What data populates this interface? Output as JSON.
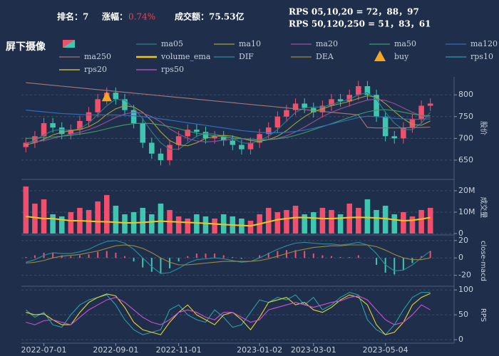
{
  "header": {
    "rank": "排名：7",
    "change_label": "涨幅：",
    "change_value": "0.74%",
    "turnover": "成交额：75.53亿",
    "rps_short": "RPS 05,10,20 = 72，88，97",
    "rps_long": "RPS 50,120,250 = 51，83，61"
  },
  "chart_data": {
    "type": "candlestick",
    "title": "屏下摄像",
    "categories": [
      null,
      null,
      "2022-07-01",
      null,
      null,
      null,
      null,
      null,
      null,
      null,
      "2022-09-01",
      null,
      null,
      null,
      null,
      null,
      null,
      "2022-11-01",
      null,
      null,
      null,
      null,
      null,
      null,
      null,
      null,
      "2023-01-02",
      null,
      null,
      null,
      null,
      null,
      "2023-03-01",
      null,
      null,
      null,
      null,
      null,
      null,
      null,
      "2023-05-04",
      null,
      null,
      null,
      null,
      null
    ],
    "open": [
      680,
      690,
      705,
      735,
      725,
      710,
      720,
      740,
      760,
      790,
      805,
      790,
      765,
      735,
      690,
      665,
      650,
      685,
      705,
      720,
      715,
      700,
      705,
      695,
      685,
      675,
      690,
      710,
      725,
      750,
      765,
      780,
      770,
      760,
      775,
      790,
      785,
      800,
      820,
      800,
      750,
      705,
      700,
      725,
      745,
      775
    ],
    "close": [
      690,
      705,
      735,
      725,
      710,
      720,
      740,
      760,
      790,
      805,
      790,
      765,
      735,
      690,
      665,
      650,
      685,
      705,
      720,
      715,
      700,
      705,
      695,
      685,
      675,
      690,
      710,
      725,
      750,
      765,
      780,
      770,
      760,
      775,
      790,
      785,
      800,
      820,
      800,
      750,
      705,
      700,
      725,
      745,
      775,
      780
    ],
    "high": [
      702,
      717,
      747,
      747,
      737,
      732,
      752,
      772,
      802,
      817,
      817,
      802,
      777,
      747,
      702,
      677,
      697,
      717,
      732,
      732,
      727,
      717,
      717,
      707,
      697,
      702,
      722,
      737,
      762,
      777,
      792,
      792,
      782,
      787,
      802,
      802,
      812,
      832,
      832,
      812,
      762,
      717,
      737,
      757,
      787,
      792
    ],
    "low": [
      668,
      678,
      693,
      713,
      698,
      698,
      708,
      728,
      748,
      778,
      778,
      753,
      723,
      678,
      653,
      638,
      638,
      673,
      693,
      703,
      688,
      688,
      683,
      673,
      663,
      663,
      678,
      698,
      713,
      738,
      753,
      758,
      748,
      748,
      763,
      773,
      773,
      788,
      788,
      738,
      693,
      688,
      688,
      713,
      733,
      763
    ],
    "up_color": "#f0506e",
    "down_color": "#3ec6b0",
    "volume": [
      22,
      14,
      16,
      9,
      8,
      10,
      12,
      11,
      15,
      18,
      13,
      9,
      10,
      12,
      9,
      14,
      11,
      8,
      7,
      9,
      8,
      7,
      9,
      8,
      7,
      6,
      9,
      12,
      10,
      11,
      13,
      9,
      10,
      12,
      11,
      9,
      14,
      12,
      16,
      11,
      13,
      9,
      10,
      8,
      11,
      12
    ],
    "macd_hist": [
      1,
      3,
      6,
      6,
      3,
      2,
      3,
      4,
      7,
      8,
      6,
      2,
      -4,
      -11,
      -16,
      -18,
      -12,
      -4,
      2,
      5,
      5,
      5,
      3,
      1,
      -1,
      0,
      3,
      6,
      8,
      9,
      9,
      8,
      5,
      3,
      2,
      1,
      1,
      3,
      0,
      -8,
      -17,
      -19,
      -14,
      -6,
      2,
      8
    ],
    "panels": {
      "price": {
        "ylabel": "股价",
        "ylim": [
          609,
          838
        ],
        "yticks": [
          650,
          700,
          750,
          800
        ]
      },
      "volume": {
        "ylabel": "成交量",
        "ylim": [
          0,
          24.3
        ],
        "yticks": [
          0,
          {
            "value": 10,
            "label": "10M"
          },
          {
            "value": 20,
            "label": "20M"
          }
        ]
      },
      "macd": {
        "ylabel": "close-macd",
        "ylim": [
          -31,
          24
        ],
        "yticks": [
          -20,
          0,
          20
        ]
      },
      "rps": {
        "ylabel": "RPS",
        "ylim": [
          -7,
          106
        ],
        "yticks": [
          0,
          50,
          100
        ]
      }
    },
    "series": [
      {
        "name": "ma05",
        "color": "#2a7f8f",
        "panel": "price",
        "values": [
          688,
          695,
          708,
          718,
          720,
          718,
          722,
          735,
          755,
          775,
          790,
          788,
          770,
          745,
          715,
          690,
          675,
          675,
          690,
          705,
          712,
          710,
          705,
          700,
          690,
          688,
          695,
          705,
          720,
          740,
          760,
          770,
          772,
          772,
          778,
          784,
          790,
          800,
          805,
          790,
          760,
          735,
          720,
          720,
          735,
          760
        ]
      },
      {
        "name": "ma10",
        "color": "#a3a13a",
        "panel": "price",
        "values": [
          685,
          690,
          698,
          708,
          714,
          718,
          720,
          727,
          738,
          755,
          768,
          775,
          772,
          760,
          740,
          715,
          695,
          685,
          683,
          690,
          700,
          705,
          707,
          705,
          700,
          695,
          693,
          697,
          705,
          718,
          735,
          750,
          762,
          768,
          775,
          780,
          785,
          792,
          798,
          795,
          780,
          762,
          745,
          732,
          730,
          740
        ]
      },
      {
        "name": "ma20",
        "color": "#9a4f9a",
        "panel": "price",
        "values": [
          690,
          692,
          695,
          700,
          705,
          710,
          714,
          720,
          728,
          738,
          748,
          756,
          760,
          758,
          750,
          738,
          722,
          710,
          700,
          694,
          692,
          693,
          696,
          698,
          700,
          698,
          696,
          697,
          700,
          706,
          715,
          726,
          738,
          750,
          760,
          768,
          775,
          782,
          788,
          790,
          787,
          780,
          770,
          760,
          752,
          748
        ]
      },
      {
        "name": "ma50",
        "color": "#3a9f6a",
        "panel": "price",
        "values": [
          700,
          701,
          702,
          703,
          705,
          707,
          710,
          713,
          717,
          722,
          727,
          731,
          734,
          735,
          734,
          731,
          727,
          722,
          717,
          712,
          709,
          706,
          703,
          701,
          699,
          698,
          697,
          697,
          699,
          702,
          707,
          713,
          720,
          727,
          734,
          741,
          748,
          755,
          761,
          765,
          766,
          764,
          760,
          756,
          753,
          752
        ]
      },
      {
        "name": "ma120",
        "color": "#2e72c0",
        "panel": "price",
        "values": [
          765,
          763,
          761,
          759,
          757,
          756,
          755,
          754,
          754,
          754,
          754,
          753,
          752,
          750,
          748,
          745,
          742,
          739,
          736,
          733,
          730,
          727,
          724,
          721,
          718,
          716,
          714,
          713,
          713,
          714,
          716,
          719,
          723,
          728,
          733,
          738,
          743,
          748,
          751,
          750,
          748,
          746,
          745,
          744,
          744,
          745
        ]
      },
      {
        "name": "ma250",
        "color": "#a87878",
        "panel": "price",
        "values": [
          828,
          826,
          824,
          822,
          820,
          818,
          816,
          814,
          812,
          810,
          808,
          806,
          804,
          802,
          800,
          798,
          796,
          794,
          792,
          790,
          788,
          786,
          784,
          782,
          780,
          778,
          776,
          774,
          772,
          770,
          768,
          766,
          764,
          762,
          760,
          758,
          756,
          754,
          725,
          724,
          724,
          724,
          724,
          725,
          725,
          726
        ]
      },
      {
        "name": "volume_ema",
        "color": "#f5c518",
        "panel": "volume",
        "values": [
          8,
          7.5,
          7,
          7,
          6.5,
          6,
          6,
          5.8,
          5.6,
          5.5,
          5.3,
          5,
          5,
          5.2,
          5.5,
          5.8,
          5.6,
          5.4,
          5.2,
          5,
          4.8,
          4.5,
          4.2,
          4,
          3.8,
          3.6,
          4.5,
          5.5,
          6.5,
          7,
          7.5,
          7.5,
          7.3,
          7,
          7,
          7.2,
          7.5,
          7.6,
          7.5,
          7.3,
          7,
          6.5,
          6,
          6.2,
          6.8,
          7.5
        ]
      },
      {
        "name": "DIF",
        "color": "#2a8f9f",
        "panel": "macd",
        "values": [
          -5,
          -2,
          3,
          6,
          5,
          5,
          7,
          10,
          15,
          19,
          20,
          17,
          10,
          0,
          -10,
          -18,
          -17,
          -12,
          -6,
          -2,
          -1,
          0,
          -1,
          -3,
          -5,
          -4,
          0,
          5,
          10,
          14,
          17,
          18,
          17,
          16,
          16,
          15,
          16,
          18,
          15,
          5,
          -8,
          -15,
          -14,
          -8,
          0,
          8
        ]
      },
      {
        "name": "DEA",
        "color": "#9a8a40",
        "panel": "macd",
        "values": [
          -6,
          -5,
          -3,
          0,
          2,
          3,
          4,
          6,
          8,
          11,
          14,
          15,
          14,
          11,
          6,
          0,
          -5,
          -8,
          -8,
          -7,
          -6,
          -5,
          -4,
          -4,
          -4,
          -4,
          -3,
          -1,
          2,
          5,
          8,
          10,
          12,
          13,
          14,
          14,
          15,
          15,
          15,
          13,
          9,
          4,
          0,
          -2,
          -2,
          0
        ]
      },
      {
        "name": "buy",
        "color": "#f5a623",
        "panel": "price",
        "marker": "triangle",
        "values": [
          null,
          null,
          null,
          null,
          null,
          null,
          null,
          null,
          null,
          795,
          null,
          null,
          null,
          null,
          null,
          null,
          null,
          null,
          null,
          null,
          null,
          null,
          null,
          null,
          null,
          null,
          null,
          null,
          null,
          null,
          null,
          null,
          null,
          null,
          null,
          null,
          null,
          null,
          null,
          null,
          null,
          null,
          null,
          null,
          null,
          null
        ]
      },
      {
        "name": "rps10",
        "color": "#2a9fa8",
        "panel": "rps",
        "values": [
          60,
          45,
          55,
          30,
          25,
          50,
          70,
          80,
          85,
          90,
          70,
          40,
          20,
          10,
          15,
          20,
          60,
          70,
          50,
          40,
          35,
          60,
          45,
          25,
          30,
          55,
          80,
          75,
          85,
          80,
          90,
          70,
          85,
          60,
          70,
          85,
          95,
          90,
          40,
          20,
          10,
          30,
          60,
          85,
          95,
          95
        ]
      },
      {
        "name": "rps20",
        "color": "#e8d42a",
        "panel": "rps",
        "values": [
          55,
          50,
          52,
          40,
          30,
          30,
          55,
          75,
          85,
          92,
          88,
          65,
          35,
          20,
          15,
          10,
          35,
          55,
          70,
          50,
          40,
          30,
          50,
          55,
          40,
          20,
          45,
          75,
          80,
          85,
          70,
          75,
          60,
          55,
          65,
          80,
          90,
          85,
          70,
          30,
          10,
          15,
          35,
          70,
          85,
          93
        ]
      },
      {
        "name": "rps50",
        "color": "#d04fd0",
        "panel": "rps",
        "values": [
          35,
          30,
          38,
          40,
          35,
          30,
          45,
          60,
          70,
          80,
          85,
          75,
          60,
          45,
          35,
          30,
          40,
          55,
          60,
          55,
          45,
          40,
          55,
          55,
          45,
          35,
          40,
          60,
          65,
          70,
          75,
          70,
          65,
          70,
          75,
          78,
          85,
          88,
          80,
          60,
          40,
          30,
          35,
          50,
          70,
          60
        ]
      }
    ],
    "grid": true
  }
}
